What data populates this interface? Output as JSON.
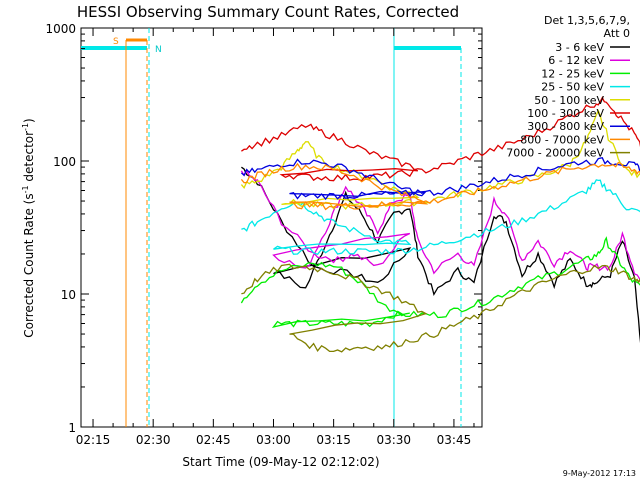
{
  "chart_data": {
    "type": "line",
    "title": "HESSI Observing Summary Count Rates, Corrected",
    "xlabel": "Start Time (09-May-12 02:12:02)",
    "ylabel": "Corrected Count Rate (s",
    "ylabel_sup": "-1",
    "ylabel_mid": " detector",
    "ylabel_close": ")",
    "yscale": "log",
    "xlim": [
      "02:12",
      "03:52"
    ],
    "ylim": [
      1,
      1000
    ],
    "x_ticks": [
      "02:15",
      "02:30",
      "02:45",
      "03:00",
      "03:15",
      "03:30",
      "03:45"
    ],
    "y_ticks": [
      "1",
      "10",
      "100",
      "1000"
    ],
    "legend_header_1": "Det 1,3,5,6,7,9,",
    "legend_header_2": "Att 0",
    "footer": "9-May-2012 17:13",
    "markers": {
      "s_label": "S",
      "n_label": "N"
    },
    "series": [
      {
        "name": "3 - 6 keV",
        "color": "#000000",
        "start": "02:30",
        "values": [
          [
            2.52,
            90
          ],
          [
            2.56,
            70
          ],
          [
            2.62,
            35
          ],
          [
            2.7,
            16
          ],
          [
            2.8,
            14
          ],
          [
            2.86,
            12
          ],
          [
            2.94,
            22
          ],
          [
            3.0,
            15
          ],
          [
            3.08,
            11
          ],
          [
            3.14,
            28
          ],
          [
            3.18,
            55
          ],
          [
            3.22,
            40
          ],
          [
            3.26,
            25
          ],
          [
            3.3,
            40
          ],
          [
            3.34,
            45
          ],
          [
            3.36,
            20
          ],
          [
            3.4,
            10
          ],
          [
            3.46,
            15
          ],
          [
            3.5,
            12
          ],
          [
            3.55,
            40
          ],
          [
            3.58,
            35
          ],
          [
            3.62,
            14
          ],
          [
            3.66,
            20
          ],
          [
            3.7,
            12
          ],
          [
            3.74,
            18
          ],
          [
            3.78,
            12
          ],
          [
            3.8,
            12
          ],
          [
            3.84,
            14
          ],
          [
            3.87,
            25
          ],
          [
            3.9,
            13
          ],
          [
            3.92,
            3
          ]
        ]
      },
      {
        "name": "6 - 12 keV",
        "color": "#dd00dd",
        "start": "02:30",
        "values": [
          [
            2.52,
            85
          ],
          [
            2.56,
            70
          ],
          [
            2.62,
            35
          ],
          [
            2.7,
            20
          ],
          [
            2.76,
            18
          ],
          [
            2.8,
            20
          ],
          [
            2.86,
            16
          ],
          [
            2.94,
            30
          ],
          [
            3.0,
            20
          ],
          [
            3.08,
            15
          ],
          [
            3.14,
            35
          ],
          [
            3.18,
            65
          ],
          [
            3.22,
            45
          ],
          [
            3.26,
            30
          ],
          [
            3.3,
            50
          ],
          [
            3.34,
            55
          ],
          [
            3.36,
            25
          ],
          [
            3.4,
            15
          ],
          [
            3.46,
            20
          ],
          [
            3.5,
            16
          ],
          [
            3.55,
            50
          ],
          [
            3.58,
            40
          ],
          [
            3.62,
            18
          ],
          [
            3.66,
            25
          ],
          [
            3.7,
            17
          ],
          [
            3.74,
            22
          ],
          [
            3.78,
            16
          ],
          [
            3.8,
            16
          ],
          [
            3.84,
            16
          ],
          [
            3.87,
            28
          ],
          [
            3.9,
            15
          ],
          [
            3.92,
            12
          ]
        ]
      },
      {
        "name": "12 - 25 keV",
        "color": "#00ee00",
        "start": "02:30",
        "values": [
          [
            2.52,
            9
          ],
          [
            2.56,
            12
          ],
          [
            2.62,
            15
          ],
          [
            2.7,
            17
          ],
          [
            2.76,
            16
          ],
          [
            2.82,
            12
          ],
          [
            2.88,
            8
          ],
          [
            2.94,
            7
          ],
          [
            3.0,
            6
          ],
          [
            3.06,
            6
          ],
          [
            3.12,
            6
          ],
          [
            3.18,
            6
          ],
          [
            3.24,
            6
          ],
          [
            3.3,
            7
          ],
          [
            3.36,
            7
          ],
          [
            3.42,
            7
          ],
          [
            3.48,
            8
          ],
          [
            3.54,
            9
          ],
          [
            3.6,
            11
          ],
          [
            3.66,
            13
          ],
          [
            3.72,
            15
          ],
          [
            3.78,
            18
          ],
          [
            3.81,
            20
          ],
          [
            3.83,
            25
          ],
          [
            3.86,
            18
          ],
          [
            3.89,
            13
          ],
          [
            3.92,
            11
          ]
        ]
      },
      {
        "name": "25 - 50 keV",
        "color": "#00e8e8",
        "start": "02:30",
        "values": [
          [
            2.52,
            30
          ],
          [
            2.56,
            35
          ],
          [
            2.62,
            45
          ],
          [
            2.66,
            50
          ],
          [
            2.7,
            42
          ],
          [
            2.74,
            35
          ],
          [
            2.8,
            30
          ],
          [
            2.88,
            25
          ],
          [
            2.94,
            24
          ],
          [
            3.0,
            22
          ],
          [
            3.06,
            21
          ],
          [
            3.12,
            21
          ],
          [
            3.18,
            21
          ],
          [
            3.24,
            21
          ],
          [
            3.3,
            21
          ],
          [
            3.36,
            22
          ],
          [
            3.42,
            24
          ],
          [
            3.48,
            27
          ],
          [
            3.54,
            30
          ],
          [
            3.6,
            34
          ],
          [
            3.66,
            40
          ],
          [
            3.72,
            48
          ],
          [
            3.78,
            60
          ],
          [
            3.81,
            70
          ],
          [
            3.84,
            60
          ],
          [
            3.88,
            45
          ],
          [
            3.92,
            40
          ]
        ]
      },
      {
        "name": "50 - 100 keV",
        "color": "#dddd00",
        "start": "02:30",
        "values": [
          [
            2.52,
            65
          ],
          [
            2.56,
            70
          ],
          [
            2.62,
            90
          ],
          [
            2.66,
            120
          ],
          [
            2.68,
            140
          ],
          [
            2.72,
            100
          ],
          [
            2.78,
            85
          ],
          [
            2.84,
            75
          ],
          [
            2.9,
            62
          ],
          [
            2.96,
            55
          ],
          [
            3.02,
            50
          ],
          [
            3.08,
            47
          ],
          [
            3.14,
            46
          ],
          [
            3.2,
            46
          ],
          [
            3.26,
            47
          ],
          [
            3.32,
            48
          ],
          [
            3.38,
            50
          ],
          [
            3.44,
            55
          ],
          [
            3.5,
            60
          ],
          [
            3.56,
            66
          ],
          [
            3.62,
            72
          ],
          [
            3.68,
            80
          ],
          [
            3.74,
            95
          ],
          [
            3.78,
            140
          ],
          [
            3.81,
            230
          ],
          [
            3.84,
            140
          ],
          [
            3.88,
            85
          ],
          [
            3.92,
            75
          ]
        ]
      },
      {
        "name": "100 - 300 keV",
        "color": "#dd0000",
        "start": "02:30",
        "values": [
          [
            2.52,
            125
          ],
          [
            2.56,
            135
          ],
          [
            2.62,
            155
          ],
          [
            2.68,
            185
          ],
          [
            2.72,
            165
          ],
          [
            2.78,
            140
          ],
          [
            2.84,
            115
          ],
          [
            2.9,
            100
          ],
          [
            2.96,
            88
          ],
          [
            3.02,
            80
          ],
          [
            3.08,
            76
          ],
          [
            3.14,
            75
          ],
          [
            3.2,
            75
          ],
          [
            3.26,
            77
          ],
          [
            3.32,
            80
          ],
          [
            3.38,
            85
          ],
          [
            3.44,
            95
          ],
          [
            3.5,
            110
          ],
          [
            3.56,
            125
          ],
          [
            3.62,
            145
          ],
          [
            3.68,
            175
          ],
          [
            3.74,
            220
          ],
          [
            3.8,
            270
          ],
          [
            3.83,
            290
          ],
          [
            3.86,
            220
          ],
          [
            3.9,
            160
          ],
          [
            3.92,
            120
          ]
        ]
      },
      {
        "name": "300 - 800 keV",
        "color": "#0000dd",
        "start": "02:30",
        "values": [
          [
            2.52,
            80
          ],
          [
            2.56,
            85
          ],
          [
            2.62,
            95
          ],
          [
            2.68,
            100
          ],
          [
            2.74,
            95
          ],
          [
            2.8,
            85
          ],
          [
            2.86,
            72
          ],
          [
            2.92,
            62
          ],
          [
            2.98,
            57
          ],
          [
            3.04,
            55
          ],
          [
            3.1,
            55
          ],
          [
            3.16,
            55
          ],
          [
            3.22,
            55
          ],
          [
            3.28,
            56
          ],
          [
            3.34,
            57
          ],
          [
            3.4,
            58
          ],
          [
            3.46,
            62
          ],
          [
            3.52,
            68
          ],
          [
            3.58,
            75
          ],
          [
            3.64,
            82
          ],
          [
            3.7,
            90
          ],
          [
            3.76,
            98
          ],
          [
            3.82,
            100
          ],
          [
            3.86,
            98
          ],
          [
            3.9,
            92
          ],
          [
            3.92,
            88
          ]
        ]
      },
      {
        "name": "800 - 7000 keV",
        "color": "#ff8800",
        "start": "02:30",
        "values": [
          [
            2.52,
            70
          ],
          [
            2.56,
            78
          ],
          [
            2.62,
            88
          ],
          [
            2.68,
            92
          ],
          [
            2.74,
            88
          ],
          [
            2.8,
            78
          ],
          [
            2.86,
            66
          ],
          [
            2.92,
            56
          ],
          [
            2.98,
            50
          ],
          [
            3.04,
            47
          ],
          [
            3.1,
            46
          ],
          [
            3.16,
            46
          ],
          [
            3.22,
            46
          ],
          [
            3.28,
            47
          ],
          [
            3.34,
            48
          ],
          [
            3.4,
            50
          ],
          [
            3.46,
            55
          ],
          [
            3.52,
            60
          ],
          [
            3.58,
            67
          ],
          [
            3.64,
            74
          ],
          [
            3.7,
            82
          ],
          [
            3.76,
            90
          ],
          [
            3.82,
            95
          ],
          [
            3.86,
            92
          ],
          [
            3.9,
            85
          ],
          [
            3.92,
            82
          ]
        ]
      },
      {
        "name": "7000 - 20000 keV",
        "color": "#808000",
        "start": "02:30",
        "values": [
          [
            2.52,
            10
          ],
          [
            2.56,
            13
          ],
          [
            2.62,
            16
          ],
          [
            2.68,
            16
          ],
          [
            2.74,
            15
          ],
          [
            2.8,
            13
          ],
          [
            2.86,
            11
          ],
          [
            2.92,
            9
          ],
          [
            2.98,
            7
          ],
          [
            3.04,
            5
          ],
          [
            3.1,
            4
          ],
          [
            3.16,
            3.8
          ],
          [
            3.22,
            4
          ],
          [
            3.28,
            4
          ],
          [
            3.34,
            4.5
          ],
          [
            3.4,
            5
          ],
          [
            3.46,
            6
          ],
          [
            3.52,
            7
          ],
          [
            3.58,
            9
          ],
          [
            3.64,
            11
          ],
          [
            3.7,
            13
          ],
          [
            3.76,
            15
          ],
          [
            3.82,
            16
          ],
          [
            3.86,
            15
          ],
          [
            3.9,
            13
          ],
          [
            3.92,
            12
          ]
        ]
      }
    ]
  }
}
